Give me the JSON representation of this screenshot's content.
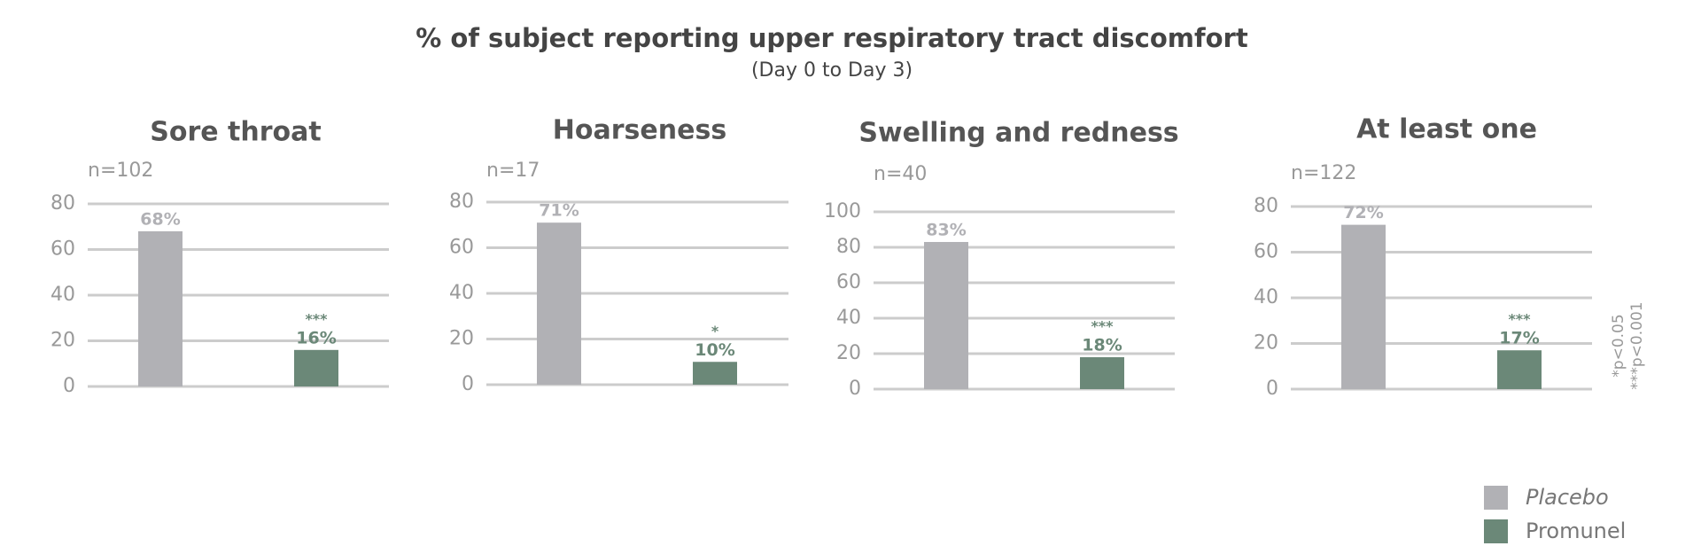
{
  "title": "% of subject reporting upper respiratory tract discomfort",
  "subtitle": "(Day 0 to Day 3)",
  "footnotes": [
    "*p<0.05",
    "***p<0.001"
  ],
  "chart_data": [
    {
      "type": "bar",
      "title": "Sore throat",
      "note": "n=102",
      "ylim": [
        0,
        80
      ],
      "yticks": [
        0,
        20,
        40,
        60,
        80
      ],
      "grid": true,
      "series": [
        {
          "name": "Placebo",
          "color": "#b1b1b5",
          "values": [
            68
          ],
          "value_labels": [
            "68%"
          ]
        },
        {
          "name": "Promunel",
          "color": "#6b8878",
          "values": [
            16
          ],
          "value_labels": [
            "16%"
          ],
          "annotations": [
            "***"
          ]
        }
      ]
    },
    {
      "type": "bar",
      "title": "Hoarseness",
      "note": "n=17",
      "ylim": [
        0,
        80
      ],
      "yticks": [
        0,
        20,
        40,
        60,
        80
      ],
      "grid": true,
      "series": [
        {
          "name": "Placebo",
          "color": "#b1b1b5",
          "values": [
            71
          ],
          "value_labels": [
            "71%"
          ]
        },
        {
          "name": "Promunel",
          "color": "#6b8878",
          "values": [
            10
          ],
          "value_labels": [
            "10%"
          ],
          "annotations": [
            "*"
          ]
        }
      ]
    },
    {
      "type": "bar",
      "title": "Swelling and redness",
      "note": "n=40",
      "ylim": [
        0,
        100
      ],
      "yticks": [
        0,
        20,
        40,
        60,
        80,
        100
      ],
      "grid": true,
      "series": [
        {
          "name": "Placebo",
          "color": "#b1b1b5",
          "values": [
            83
          ],
          "value_labels": [
            "83%"
          ]
        },
        {
          "name": "Promunel",
          "color": "#6b8878",
          "values": [
            18
          ],
          "value_labels": [
            "18%"
          ],
          "annotations": [
            "***"
          ]
        }
      ]
    },
    {
      "type": "bar",
      "title": "At least one",
      "note": "n=122",
      "ylim": [
        0,
        80
      ],
      "yticks": [
        0,
        20,
        40,
        60,
        80
      ],
      "grid": true,
      "series": [
        {
          "name": "Placebo",
          "color": "#b1b1b5",
          "values": [
            72
          ],
          "value_labels": [
            "72%"
          ]
        },
        {
          "name": "Promunel",
          "color": "#6b8878",
          "values": [
            17
          ],
          "value_labels": [
            "17%"
          ],
          "annotations": [
            "***"
          ]
        }
      ]
    }
  ]
}
